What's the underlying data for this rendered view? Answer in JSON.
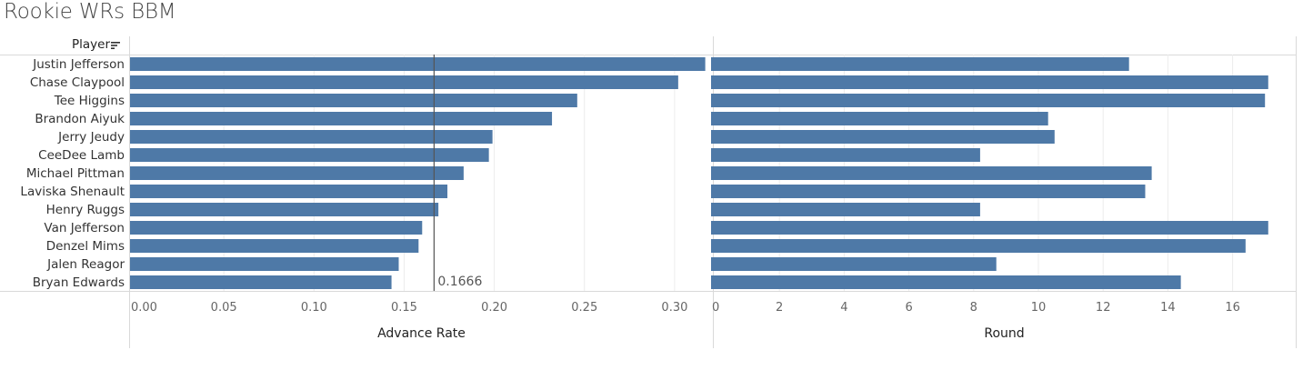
{
  "title": "Rookie WRs BBM",
  "header": {
    "row_label": "Player",
    "sort_icon": "sort-descending-icon"
  },
  "chart_data": {
    "type": "bar",
    "orientation": "horizontal",
    "categories": [
      "Justin Jefferson",
      "Chase Claypool",
      "Tee Higgins",
      "Brandon Aiyuk",
      "Jerry Jeudy",
      "CeeDee Lamb",
      "Michael Pittman",
      "Laviska Shenault",
      "Henry Ruggs",
      "Van Jefferson",
      "Denzel Mims",
      "Jalen Reagor",
      "Bryan Edwards"
    ],
    "color": "#4e79a7",
    "panels": [
      {
        "measure": "Advance Rate",
        "xlabel": "Advance Rate",
        "xlim": [
          0,
          0.32
        ],
        "ticks": [
          0.0,
          0.05,
          0.1,
          0.15,
          0.2,
          0.25,
          0.3
        ],
        "tick_labels": [
          "0.00",
          "0.05",
          "0.10",
          "0.15",
          "0.20",
          "0.25",
          "0.30"
        ],
        "values": [
          0.317,
          0.302,
          0.246,
          0.232,
          0.199,
          0.197,
          0.183,
          0.174,
          0.169,
          0.16,
          0.158,
          0.147,
          0.143
        ],
        "reference_line": {
          "value": 0.1666,
          "label": "0.1666"
        }
      },
      {
        "measure": "Round",
        "xlabel": "Round",
        "xlim": [
          0,
          17.5
        ],
        "ticks": [
          0,
          2,
          4,
          6,
          8,
          10,
          12,
          14,
          16
        ],
        "tick_labels": [
          "0",
          "2",
          "4",
          "6",
          "8",
          "10",
          "12",
          "14",
          "16"
        ],
        "values": [
          12.8,
          17.1,
          17.0,
          10.3,
          10.5,
          8.2,
          13.5,
          13.3,
          8.2,
          17.1,
          16.4,
          8.7,
          14.4
        ]
      }
    ],
    "grid": true,
    "legend": "none"
  }
}
